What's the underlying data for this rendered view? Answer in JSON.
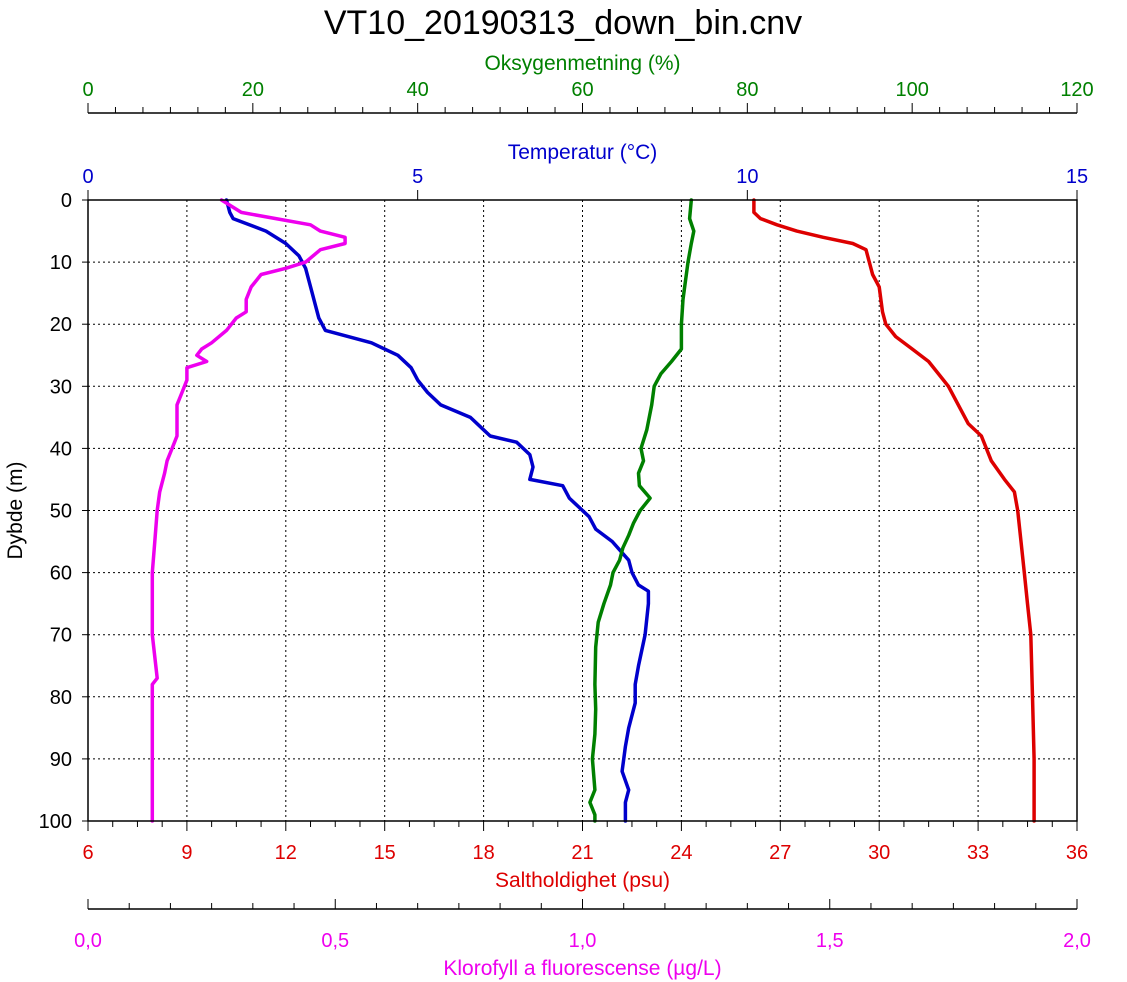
{
  "chart_data": {
    "type": "line",
    "title": "VT10_20190313_down_bin.cnv",
    "y_axis": {
      "label": "Dybde (m)",
      "range": [
        0,
        100
      ],
      "inverted": true,
      "ticks": [
        "0",
        "10",
        "20",
        "30",
        "40",
        "50",
        "60",
        "70",
        "80",
        "90",
        "100"
      ]
    },
    "x_axes": [
      {
        "key": "oxygen",
        "label": "Oksygenmetning (%)",
        "position": "top-outer",
        "color": "#008000",
        "range": [
          0,
          120
        ],
        "ticks": [
          "0",
          "20",
          "40",
          "60",
          "80",
          "100",
          "120"
        ]
      },
      {
        "key": "temperature",
        "label": "Temperatur (°C)",
        "position": "top",
        "color": "#0000cc",
        "range": [
          0,
          15
        ],
        "ticks": [
          "0",
          "5",
          "10",
          "15"
        ]
      },
      {
        "key": "salinity",
        "label": "Saltholdighet (psu)",
        "position": "bottom",
        "color": "#dd0000",
        "range": [
          6,
          36
        ],
        "ticks": [
          "6",
          "9",
          "12",
          "15",
          "18",
          "21",
          "24",
          "27",
          "30",
          "33",
          "36"
        ]
      },
      {
        "key": "chlorophyll",
        "label": "Klorofyll a fluorescense (µg/L)",
        "position": "bottom-outer",
        "color": "#ee00ee",
        "range": [
          0,
          2
        ],
        "ticks": [
          "0,0",
          "0,5",
          "1,0",
          "1,5",
          "2,0"
        ]
      }
    ],
    "grid": true,
    "legend": "none",
    "series": [
      {
        "axis": "salinity",
        "color": "#dd0000",
        "points": [
          [
            26.2,
            0
          ],
          [
            26.2,
            2
          ],
          [
            26.4,
            3
          ],
          [
            26.9,
            4
          ],
          [
            27.5,
            5
          ],
          [
            28.3,
            6
          ],
          [
            29.2,
            7
          ],
          [
            29.6,
            8
          ],
          [
            29.7,
            10
          ],
          [
            29.8,
            12
          ],
          [
            30.0,
            14
          ],
          [
            30.1,
            18
          ],
          [
            30.2,
            20
          ],
          [
            30.5,
            22
          ],
          [
            31.0,
            24
          ],
          [
            31.5,
            26
          ],
          [
            31.8,
            28
          ],
          [
            32.1,
            30
          ],
          [
            32.4,
            33
          ],
          [
            32.7,
            36
          ],
          [
            33.1,
            38
          ],
          [
            33.4,
            42
          ],
          [
            33.8,
            45
          ],
          [
            34.1,
            47
          ],
          [
            34.2,
            50
          ],
          [
            34.3,
            55
          ],
          [
            34.4,
            60
          ],
          [
            34.5,
            65
          ],
          [
            34.6,
            70
          ],
          [
            34.65,
            80
          ],
          [
            34.7,
            90
          ],
          [
            34.7,
            100
          ]
        ]
      },
      {
        "axis": "temperature",
        "color": "#0000cc",
        "points": [
          [
            2.1,
            0
          ],
          [
            2.15,
            2
          ],
          [
            2.2,
            3
          ],
          [
            2.7,
            5
          ],
          [
            3.0,
            7
          ],
          [
            3.2,
            9
          ],
          [
            3.3,
            11
          ],
          [
            3.35,
            13
          ],
          [
            3.4,
            15
          ],
          [
            3.45,
            17
          ],
          [
            3.5,
            19
          ],
          [
            3.6,
            21
          ],
          [
            4.3,
            23
          ],
          [
            4.7,
            25
          ],
          [
            4.9,
            27
          ],
          [
            5.0,
            29
          ],
          [
            5.15,
            31
          ],
          [
            5.35,
            33
          ],
          [
            5.8,
            35
          ],
          [
            6.0,
            37
          ],
          [
            6.1,
            38
          ],
          [
            6.5,
            39
          ],
          [
            6.6,
            40
          ],
          [
            6.7,
            41
          ],
          [
            6.75,
            43
          ],
          [
            6.7,
            45
          ],
          [
            7.2,
            46
          ],
          [
            7.3,
            48
          ],
          [
            7.4,
            49
          ],
          [
            7.6,
            51
          ],
          [
            7.7,
            53
          ],
          [
            7.95,
            55
          ],
          [
            8.2,
            58
          ],
          [
            8.25,
            60
          ],
          [
            8.35,
            62
          ],
          [
            8.5,
            63
          ],
          [
            8.5,
            65
          ],
          [
            8.45,
            70
          ],
          [
            8.35,
            75
          ],
          [
            8.3,
            78
          ],
          [
            8.3,
            81
          ],
          [
            8.2,
            85
          ],
          [
            8.15,
            88
          ],
          [
            8.1,
            92
          ],
          [
            8.2,
            95
          ],
          [
            8.15,
            97
          ],
          [
            8.15,
            100
          ]
        ]
      },
      {
        "axis": "oxygen",
        "color": "#008000",
        "points": [
          [
            73.2,
            0
          ],
          [
            73.0,
            3
          ],
          [
            73.5,
            5
          ],
          [
            73.2,
            7
          ],
          [
            72.8,
            10
          ],
          [
            72.5,
            13
          ],
          [
            72.2,
            16
          ],
          [
            72.0,
            20
          ],
          [
            72.0,
            24
          ],
          [
            70.8,
            26
          ],
          [
            69.5,
            28
          ],
          [
            68.7,
            30
          ],
          [
            68.4,
            33
          ],
          [
            67.8,
            37
          ],
          [
            67.1,
            40
          ],
          [
            67.4,
            42
          ],
          [
            66.8,
            44
          ],
          [
            66.9,
            46
          ],
          [
            68.2,
            48
          ],
          [
            67.0,
            50
          ],
          [
            66.2,
            52
          ],
          [
            65.6,
            54
          ],
          [
            64.9,
            56
          ],
          [
            64.5,
            58
          ],
          [
            63.7,
            60
          ],
          [
            63.4,
            62
          ],
          [
            62.6,
            65
          ],
          [
            61.9,
            68
          ],
          [
            61.6,
            72
          ],
          [
            61.5,
            78
          ],
          [
            61.6,
            82
          ],
          [
            61.5,
            86
          ],
          [
            61.2,
            90
          ],
          [
            61.5,
            95
          ],
          [
            60.9,
            97
          ],
          [
            61.5,
            99
          ],
          [
            61.5,
            100
          ]
        ]
      },
      {
        "axis": "chlorophyll",
        "color": "#ee00ee",
        "points": [
          [
            0.27,
            0
          ],
          [
            0.31,
            2
          ],
          [
            0.38,
            3
          ],
          [
            0.45,
            4
          ],
          [
            0.47,
            5
          ],
          [
            0.52,
            6
          ],
          [
            0.52,
            7
          ],
          [
            0.47,
            8
          ],
          [
            0.44,
            10
          ],
          [
            0.4,
            11
          ],
          [
            0.35,
            12
          ],
          [
            0.33,
            14
          ],
          [
            0.32,
            16
          ],
          [
            0.32,
            18
          ],
          [
            0.3,
            19
          ],
          [
            0.28,
            21
          ],
          [
            0.25,
            23
          ],
          [
            0.23,
            24
          ],
          [
            0.22,
            25
          ],
          [
            0.24,
            26
          ],
          [
            0.2,
            27
          ],
          [
            0.2,
            29
          ],
          [
            0.19,
            31
          ],
          [
            0.18,
            33
          ],
          [
            0.18,
            35
          ],
          [
            0.18,
            38
          ],
          [
            0.17,
            40
          ],
          [
            0.16,
            42
          ],
          [
            0.155,
            44
          ],
          [
            0.145,
            47
          ],
          [
            0.14,
            50
          ],
          [
            0.135,
            55
          ],
          [
            0.13,
            60
          ],
          [
            0.13,
            70
          ],
          [
            0.14,
            77
          ],
          [
            0.13,
            78
          ],
          [
            0.13,
            85
          ],
          [
            0.13,
            90
          ],
          [
            0.13,
            95
          ],
          [
            0.13,
            100
          ]
        ]
      }
    ]
  }
}
